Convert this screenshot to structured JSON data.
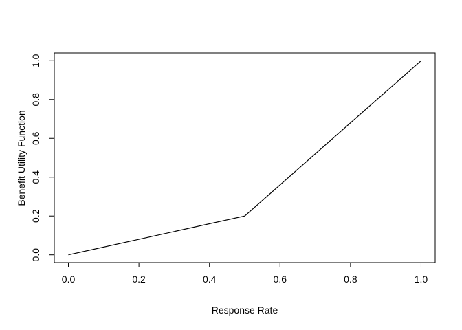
{
  "figure": {
    "background": "#ffffff",
    "foreground": "#000000"
  },
  "chart_data": {
    "type": "line",
    "title": "",
    "xlabel": "Response Rate",
    "ylabel": "Benefit Utility Function",
    "x": [
      0.0,
      0.5,
      1.0
    ],
    "y": [
      0.0,
      0.2,
      1.0
    ],
    "xlim": [
      0.0,
      1.0
    ],
    "ylim": [
      0.0,
      1.0
    ],
    "xtick_values": [
      0.0,
      0.2,
      0.4,
      0.6,
      0.8,
      1.0
    ],
    "xticks": [
      "0.0",
      "0.2",
      "0.4",
      "0.6",
      "0.8",
      "1.0"
    ],
    "ytick_values": [
      0.0,
      0.2,
      0.4,
      0.6,
      0.8,
      1.0
    ],
    "yticks": [
      "0.0",
      "0.2",
      "0.4",
      "0.6",
      "0.8",
      "1.0"
    ],
    "grid": false,
    "legend": "none",
    "line_color": "#000000",
    "axis_color": "#000000",
    "background_color": "#ffffff"
  }
}
